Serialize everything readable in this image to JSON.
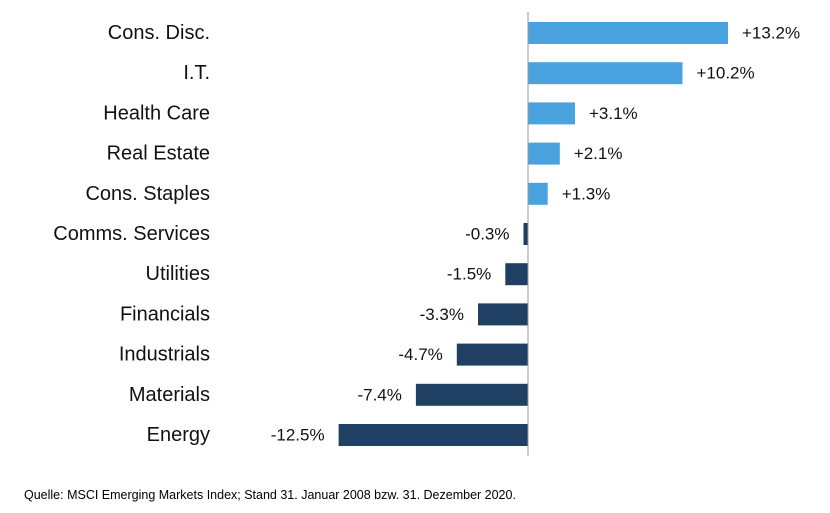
{
  "chart_data": {
    "type": "bar",
    "orientation": "horizontal",
    "categories": [
      "Cons. Disc.",
      "I.T.",
      "Health Care",
      "Real Estate",
      "Cons. Staples",
      "Comms. Services",
      "Utilities",
      "Financials",
      "Industrials",
      "Materials",
      "Energy"
    ],
    "values": [
      13.2,
      10.2,
      3.1,
      2.1,
      1.3,
      -0.3,
      -1.5,
      -3.3,
      -4.7,
      -7.4,
      -12.5
    ],
    "value_labels": [
      "+13.2%",
      "+10.2%",
      "+3.1%",
      "+2.1%",
      "+1.3%",
      "-0.3%",
      "-1.5%",
      "-3.3%",
      "-4.7%",
      "-7.4%",
      "-12.5%"
    ],
    "colors": {
      "positive": "#4aa3df",
      "negative": "#1f3f63",
      "zero_axis": "#9a9a9a"
    },
    "legend": "none",
    "grid": false
  },
  "footnote": "Quelle: MSCI Emerging Markets Index; Stand 31. Januar 2008 bzw. 31. Dezember 2020."
}
